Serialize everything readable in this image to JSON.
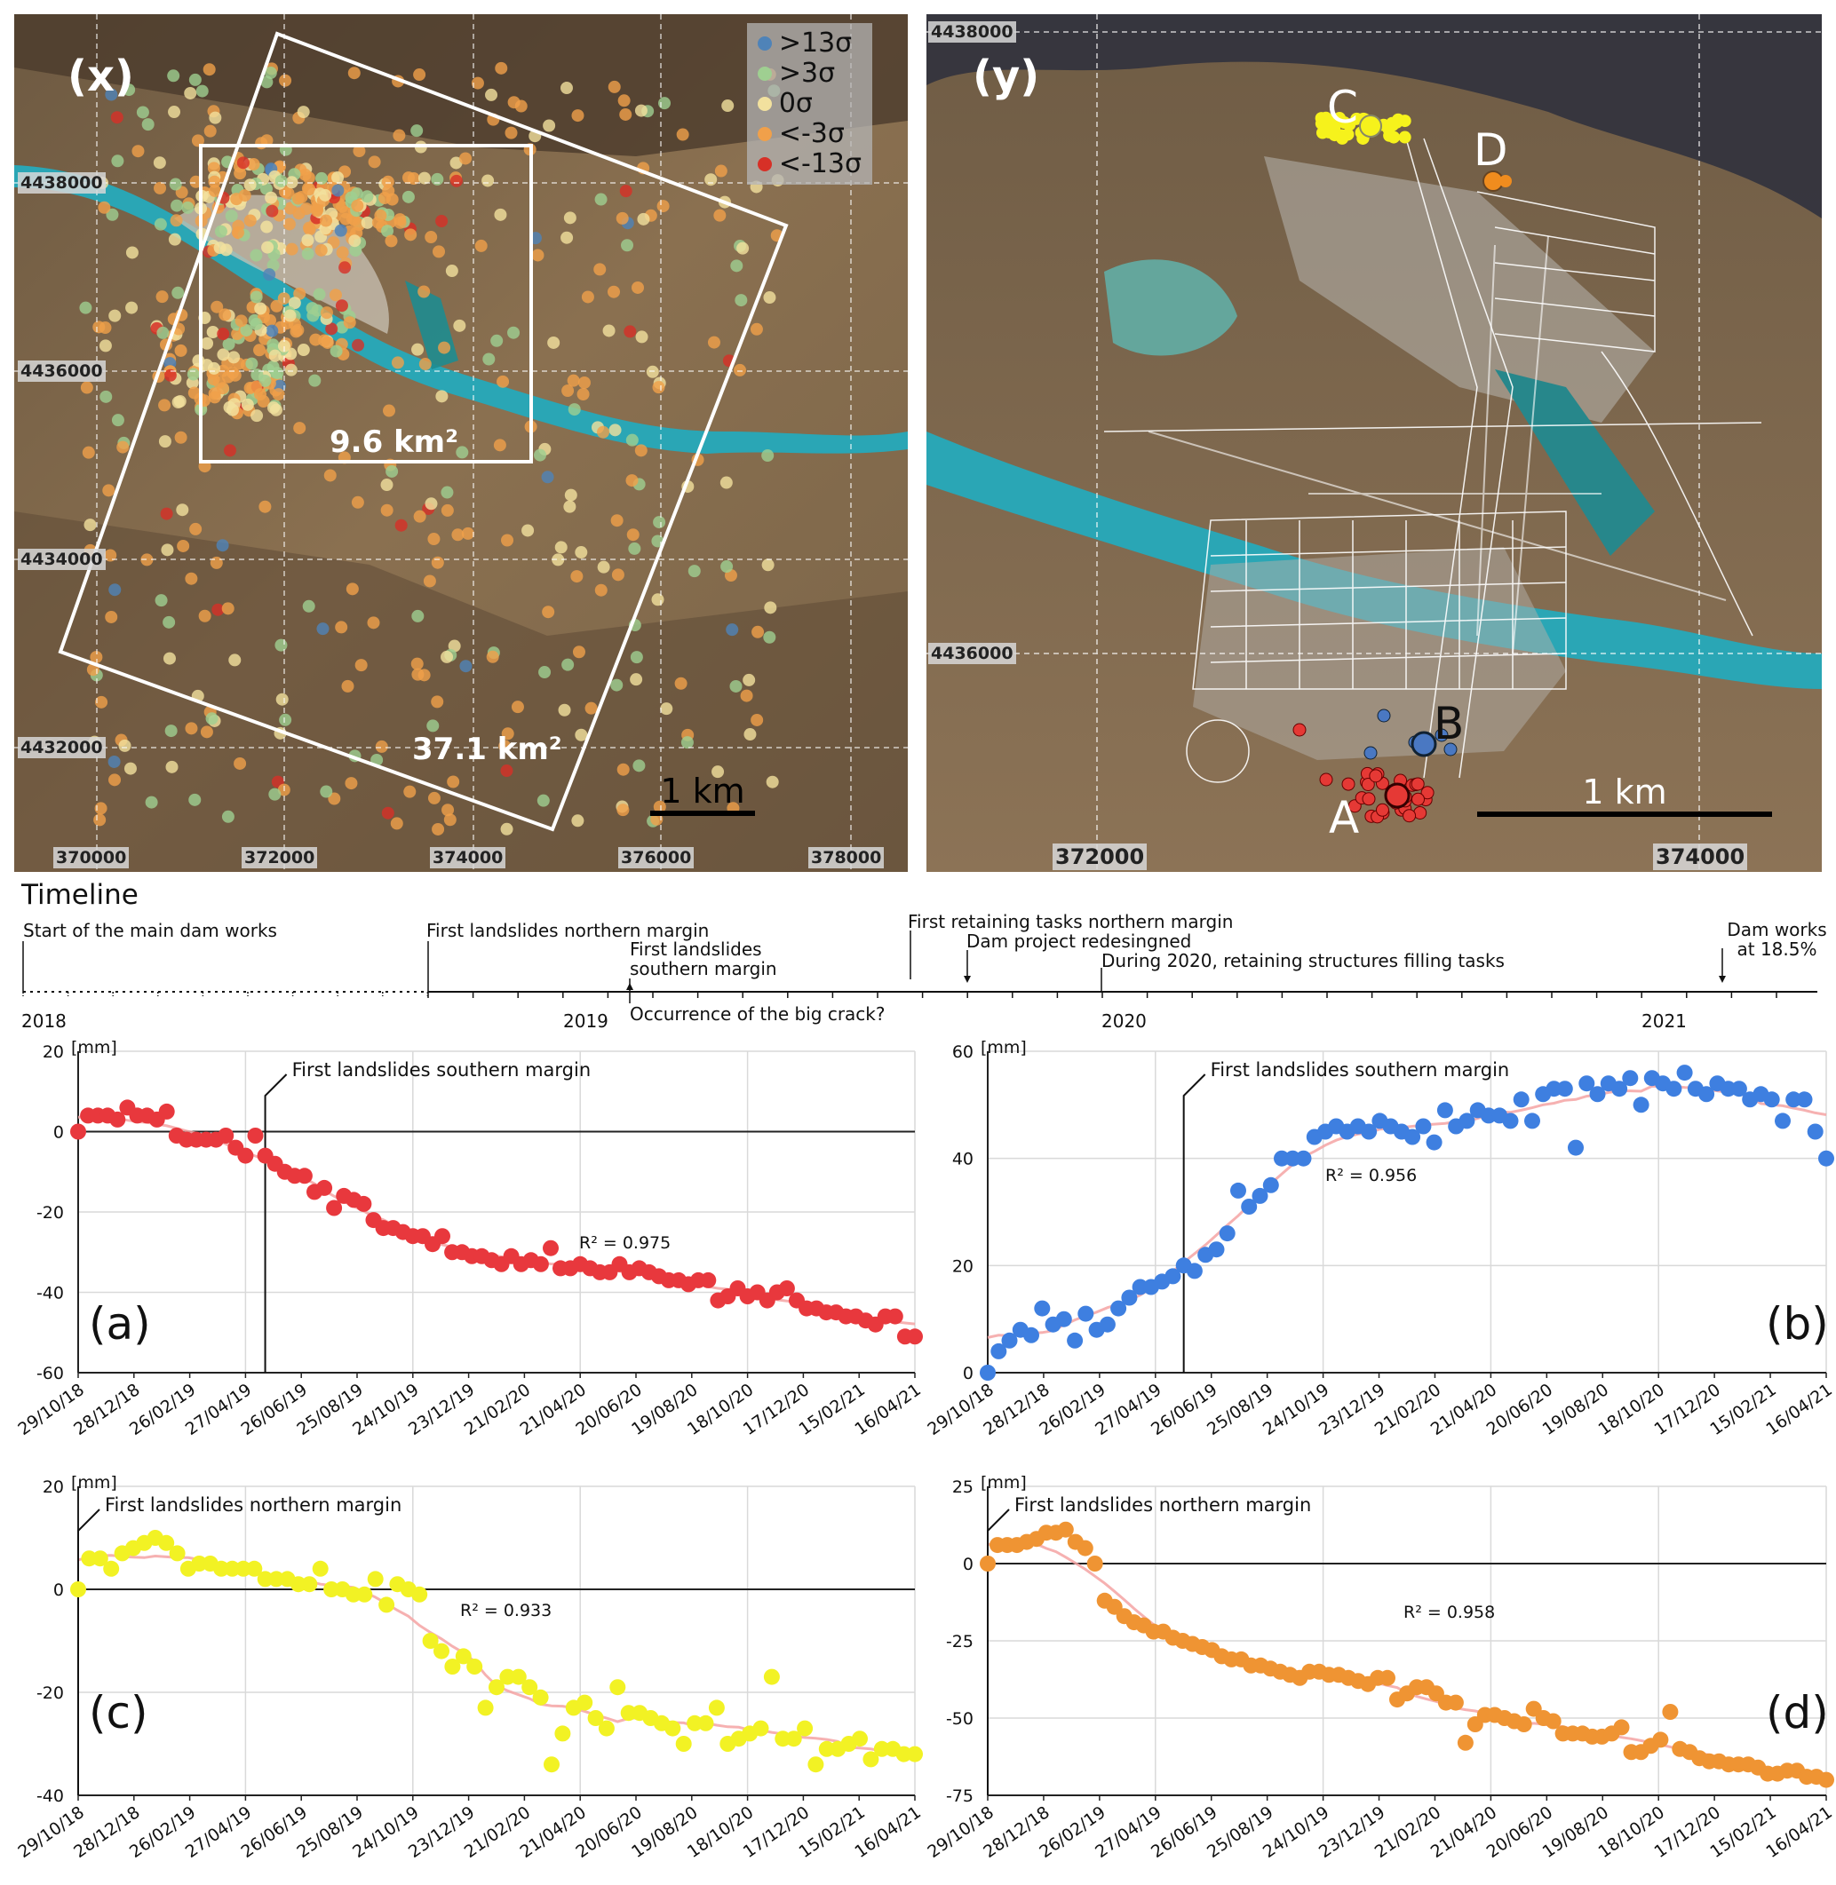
{
  "maps": {
    "x": {
      "letter": "(x)",
      "legend": [
        {
          "label": ">13σ",
          "color": "#4f83b8"
        },
        {
          "label": ">3σ",
          "color": "#9fcf91"
        },
        {
          "label": "0σ",
          "color": "#f2e19e"
        },
        {
          "label": "<-3σ",
          "color": "#f0a04a"
        },
        {
          "label": "<-13σ",
          "color": "#d73027"
        }
      ],
      "northing_labels": [
        "4438000",
        "4436000",
        "4434000",
        "4432000"
      ],
      "easting_labels": [
        "370000",
        "372000",
        "374000",
        "376000",
        "378000"
      ],
      "area_small": "9.6 km²",
      "area_large": "37.1 km²",
      "scale": "1 km"
    },
    "y": {
      "letter": "(y)",
      "northing_labels": [
        "4438000",
        "4436000"
      ],
      "easting_labels": [
        "372000",
        "374000"
      ],
      "points": [
        {
          "label": "A",
          "color": "#e53935"
        },
        {
          "label": "B",
          "color": "#4a78c2"
        },
        {
          "label": "C",
          "color": "#f6f21c"
        },
        {
          "label": "D",
          "color": "#f08c1e"
        }
      ],
      "scale": "1 km"
    }
  },
  "timeline": {
    "title": "Timeline",
    "years": [
      "2018",
      "2019",
      "2020",
      "2021"
    ],
    "events": [
      "Start of the main dam works",
      "First landslides northern margin",
      "First landslides southern margin",
      "Occurrence of the big crack?",
      "First retaining tasks northern margin",
      "Dam project redesingned",
      "During 2020, retaining structures filling tasks",
      "Dam works at 18.5%"
    ]
  },
  "chart_data": [
    {
      "panel": "(a)",
      "type": "scatter",
      "color": "#e8383d",
      "unit": "[mm]",
      "ylim": [
        -60,
        20
      ],
      "yticks": [
        20,
        0,
        -20,
        -40,
        -60
      ],
      "x_tick_labels": [
        "29/10/18",
        "28/12/18",
        "26/02/19",
        "27/04/19",
        "26/06/19",
        "25/08/19",
        "24/10/19",
        "23/12/19",
        "21/02/20",
        "21/04/20",
        "20/06/20",
        "19/08/20",
        "18/10/20",
        "17/12/20",
        "15/02/21",
        "16/04/21"
      ],
      "annotation": "First landslides southern margin",
      "annotation_x": 19,
      "r2": "R² = 0.975",
      "values": [
        0,
        4,
        4,
        4,
        3,
        6,
        4,
        4,
        3,
        5,
        -1,
        -2,
        -2,
        -2,
        -2,
        -1,
        -4,
        -6,
        -1,
        -6,
        -8,
        -10,
        -11,
        -11,
        -15,
        -14,
        -19,
        -16,
        -17,
        -18,
        -22,
        -24,
        -24,
        -25,
        -26,
        -26,
        -28,
        -26,
        -30,
        -30,
        -31,
        -31,
        -32,
        -33,
        -31,
        -33,
        -32,
        -33,
        -29,
        -34,
        -34,
        -33,
        -34,
        -35,
        -35,
        -33,
        -35,
        -34,
        -35,
        -36,
        -37,
        -37,
        -38,
        -37,
        -37,
        -42,
        -41,
        -39,
        -41,
        -40,
        -42,
        -40,
        -39,
        -42,
        -44,
        -44,
        -45,
        -45,
        -46,
        -46,
        -47,
        -48,
        -46,
        -46,
        -51,
        -51
      ]
    },
    {
      "panel": "(b)",
      "type": "scatter",
      "color": "#3e7fe0",
      "unit": "[mm]",
      "ylim": [
        0,
        60
      ],
      "yticks": [
        60,
        40,
        20,
        0
      ],
      "x_tick_labels": [
        "29/10/18",
        "28/12/18",
        "26/02/19",
        "27/04/19",
        "26/06/19",
        "25/08/19",
        "24/10/19",
        "23/12/19",
        "21/02/20",
        "21/04/20",
        "20/06/20",
        "19/08/20",
        "18/10/20",
        "17/12/20",
        "15/02/21",
        "16/04/21"
      ],
      "annotation": "First landslides southern margin",
      "annotation_x": 18,
      "r2": "R² = 0.956",
      "values": [
        0,
        4,
        6,
        8,
        7,
        12,
        9,
        10,
        6,
        11,
        8,
        9,
        12,
        14,
        16,
        16,
        17,
        18,
        20,
        19,
        22,
        23,
        26,
        34,
        31,
        33,
        35,
        40,
        40,
        40,
        44,
        45,
        46,
        45,
        46,
        45,
        47,
        46,
        45,
        44,
        46,
        43,
        49,
        46,
        47,
        49,
        48,
        48,
        47,
        51,
        47,
        52,
        53,
        53,
        42,
        54,
        52,
        54,
        53,
        55,
        50,
        55,
        54,
        53,
        56,
        53,
        52,
        54,
        53,
        53,
        51,
        52,
        51,
        47,
        51,
        51,
        45,
        40
      ]
    },
    {
      "panel": "(c)",
      "type": "scatter",
      "color": "#f2f224",
      "unit": "[mm]",
      "ylim": [
        -40,
        20
      ],
      "yticks": [
        20,
        0,
        -20,
        -40
      ],
      "x_tick_labels": [
        "29/10/18",
        "28/12/18",
        "26/02/19",
        "27/04/19",
        "26/06/19",
        "25/08/19",
        "24/10/19",
        "23/12/19",
        "21/02/20",
        "21/04/20",
        "20/06/20",
        "19/08/20",
        "18/10/20",
        "17/12/20",
        "15/02/21",
        "16/04/21"
      ],
      "annotation": "First landslides northern margin",
      "annotation_x": 0,
      "r2": "R² = 0.933",
      "values": [
        0,
        6,
        6,
        4,
        7,
        8,
        9,
        10,
        9,
        7,
        4,
        5,
        5,
        4,
        4,
        4,
        4,
        2,
        2,
        2,
        1,
        1,
        4,
        0,
        0,
        -1,
        -1,
        2,
        -3,
        1,
        0,
        -1,
        -10,
        -12,
        -15,
        -13,
        -15,
        -23,
        -19,
        -17,
        -17,
        -19,
        -21,
        -34,
        -28,
        -23,
        -22,
        -25,
        -27,
        -19,
        -24,
        -24,
        -25,
        -26,
        -27,
        -30,
        -26,
        -26,
        -23,
        -30,
        -29,
        -28,
        -27,
        -17,
        -29,
        -29,
        -27,
        -34,
        -31,
        -31,
        -30,
        -29,
        -33,
        -31,
        -31,
        -32,
        -32
      ]
    },
    {
      "panel": "(d)",
      "type": "scatter",
      "color": "#ef9433",
      "unit": "[mm]",
      "ylim": [
        -75,
        25
      ],
      "yticks": [
        25,
        0,
        -25,
        -50,
        -75
      ],
      "x_tick_labels": [
        "29/10/18",
        "28/12/18",
        "26/02/19",
        "27/04/19",
        "26/06/19",
        "25/08/19",
        "24/10/19",
        "23/12/19",
        "21/02/20",
        "21/04/20",
        "20/06/20",
        "19/08/20",
        "18/10/20",
        "17/12/20",
        "15/02/21",
        "16/04/21"
      ],
      "annotation": "First landslides northern margin",
      "annotation_x": 0,
      "r2": "R² = 0.958",
      "values": [
        0,
        6,
        6,
        6,
        7,
        8,
        10,
        10,
        11,
        7,
        5,
        0,
        -12,
        -14,
        -17,
        -19,
        -20,
        -22,
        -22,
        -24,
        -25,
        -26,
        -27,
        -28,
        -30,
        -31,
        -31,
        -33,
        -33,
        -34,
        -35,
        -36,
        -37,
        -35,
        -35,
        -36,
        -36,
        -37,
        -38,
        -39,
        -37,
        -37,
        -44,
        -42,
        -40,
        -40,
        -42,
        -45,
        -45,
        -58,
        -52,
        -49,
        -49,
        -50,
        -51,
        -52,
        -47,
        -50,
        -51,
        -55,
        -55,
        -55,
        -56,
        -56,
        -55,
        -53,
        -61,
        -61,
        -59,
        -57,
        -48,
        -60,
        -61,
        -63,
        -64,
        -64,
        -65,
        -65,
        -65,
        -66,
        -68,
        -68,
        -67,
        -67,
        -69,
        -69,
        -70
      ]
    }
  ]
}
